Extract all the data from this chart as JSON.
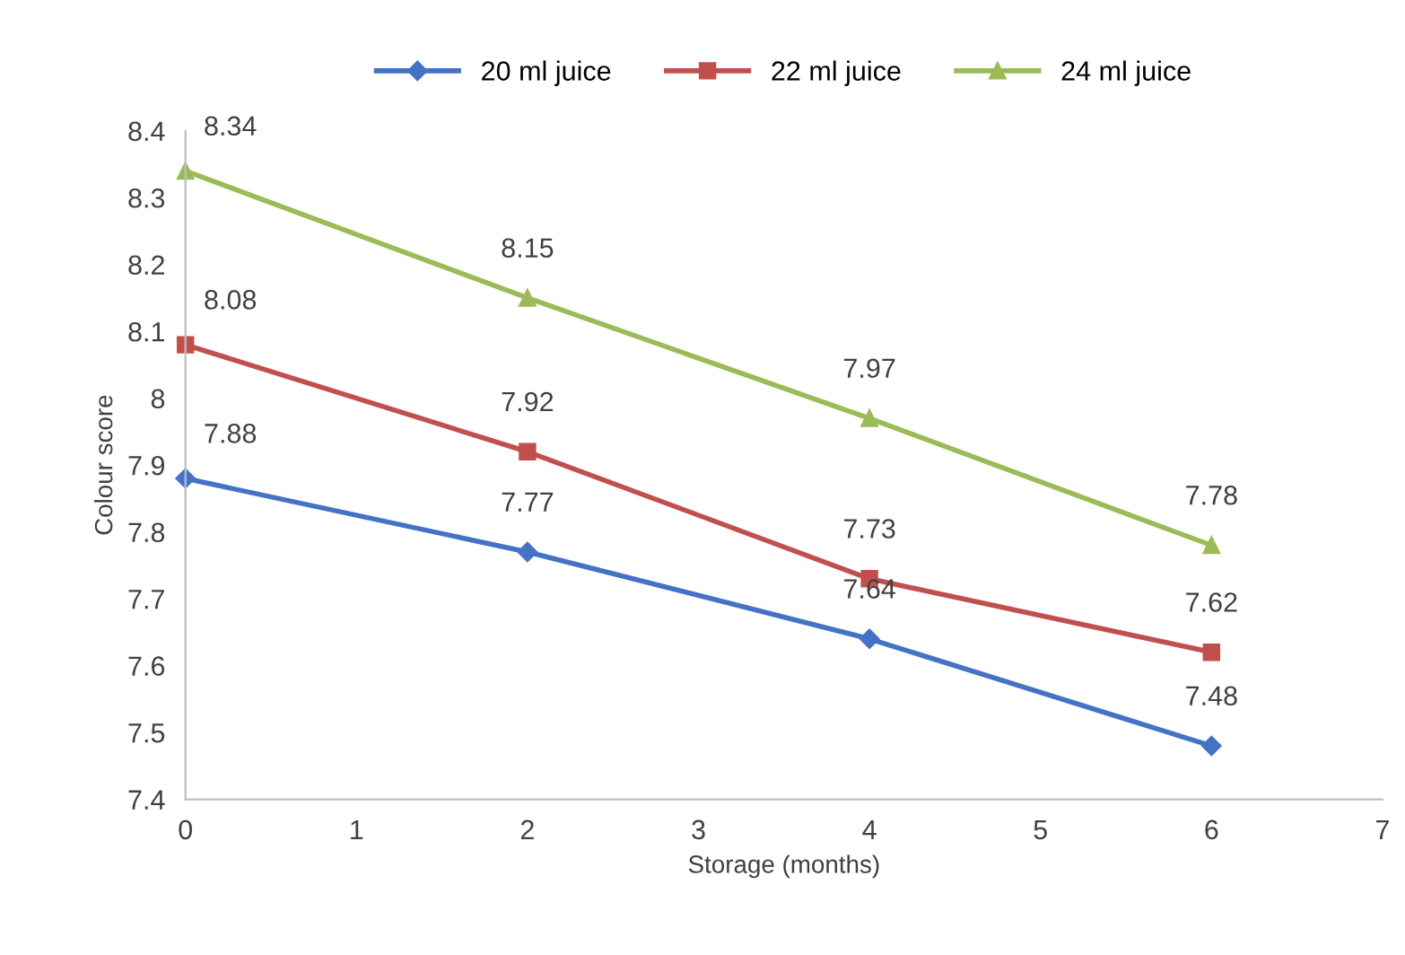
{
  "chart_data": {
    "type": "line",
    "xlabel": "Storage (months)",
    "ylabel": "Colour score",
    "x": [
      0,
      2,
      4,
      6
    ],
    "series": [
      {
        "name": "20 ml juice",
        "color": "#4472c4",
        "marker": "diamond",
        "values": [
          7.88,
          7.77,
          7.64,
          7.48
        ]
      },
      {
        "name": "22 ml juice",
        "color": "#c0504d",
        "marker": "square",
        "values": [
          8.08,
          7.92,
          7.73,
          7.62
        ]
      },
      {
        "name": "24 ml juice",
        "color": "#9bbb59",
        "marker": "triangle",
        "values": [
          8.34,
          8.15,
          7.97,
          7.78
        ]
      }
    ],
    "xlim": [
      0,
      7
    ],
    "xticks": [
      0,
      1,
      2,
      3,
      4,
      5,
      6,
      7
    ],
    "ylim": [
      7.4,
      8.4
    ],
    "yticks": [
      7.4,
      7.5,
      7.6,
      7.7,
      7.8,
      7.9,
      8,
      8.1,
      8.2,
      8.3,
      8.4
    ],
    "data_labels": true,
    "legend": "top",
    "grid": false,
    "line_style": "solid"
  }
}
